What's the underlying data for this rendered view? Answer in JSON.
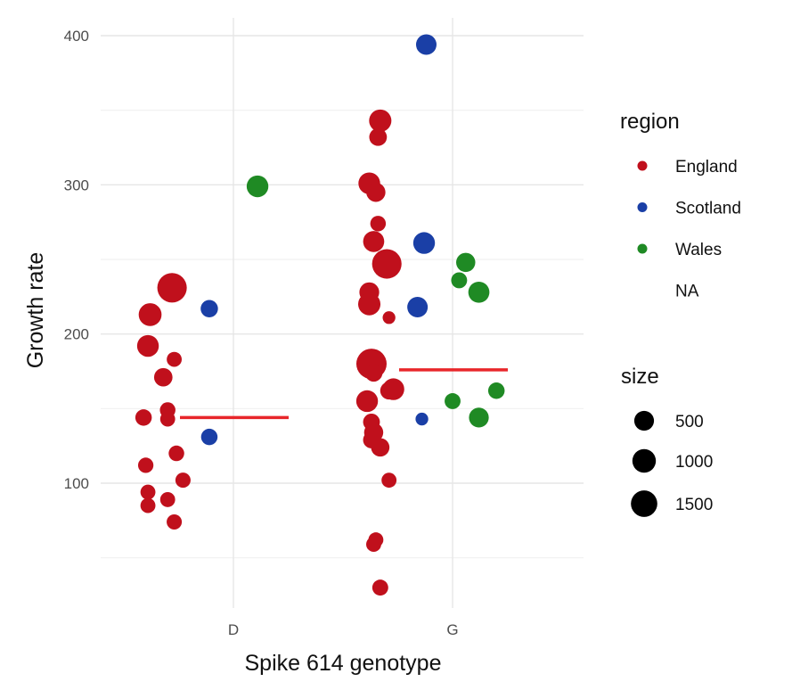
{
  "chart_data": {
    "type": "scatter",
    "xlabel": "Spike 614 genotype",
    "ylabel": "Growth rate",
    "categories": [
      "D",
      "G"
    ],
    "ylim": [
      20,
      410
    ],
    "yticks": [
      100,
      200,
      300,
      400
    ],
    "grid": true,
    "legend_placement": "right",
    "color_legend": {
      "title": "region",
      "entries": [
        {
          "label": "England",
          "color": "#c0101c"
        },
        {
          "label": "Scotland",
          "color": "#1a3fa6"
        },
        {
          "label": "Wales",
          "color": "#1f8a24"
        },
        {
          "label": "NA",
          "color": null
        }
      ]
    },
    "size_legend": {
      "title": "size",
      "entries": [
        {
          "label": "500",
          "value": 500
        },
        {
          "label": "1000",
          "value": 1000
        },
        {
          "label": "1500",
          "value": 1500
        }
      ]
    },
    "mean_line_color": "#e8262a",
    "means": [
      {
        "category": "D",
        "value": 144
      },
      {
        "category": "G",
        "value": 176
      }
    ],
    "points": [
      {
        "category": "D",
        "offset": -0.28,
        "y": 231,
        "region": "England",
        "size": 1500
      },
      {
        "category": "D",
        "offset": -0.38,
        "y": 213,
        "region": "England",
        "size": 800
      },
      {
        "category": "D",
        "offset": -0.39,
        "y": 192,
        "region": "England",
        "size": 700
      },
      {
        "category": "D",
        "offset": -0.27,
        "y": 183,
        "region": "England",
        "size": 250
      },
      {
        "category": "D",
        "offset": -0.32,
        "y": 171,
        "region": "England",
        "size": 450
      },
      {
        "category": "D",
        "offset": -0.3,
        "y": 149,
        "region": "England",
        "size": 280
      },
      {
        "category": "D",
        "offset": -0.41,
        "y": 144,
        "region": "England",
        "size": 330
      },
      {
        "category": "D",
        "offset": -0.3,
        "y": 143,
        "region": "England",
        "size": 250
      },
      {
        "category": "D",
        "offset": -0.26,
        "y": 120,
        "region": "England",
        "size": 280
      },
      {
        "category": "D",
        "offset": -0.4,
        "y": 112,
        "region": "England",
        "size": 270
      },
      {
        "category": "D",
        "offset": -0.23,
        "y": 102,
        "region": "England",
        "size": 260
      },
      {
        "category": "D",
        "offset": -0.39,
        "y": 94,
        "region": "England",
        "size": 250
      },
      {
        "category": "D",
        "offset": -0.3,
        "y": 89,
        "region": "England",
        "size": 250
      },
      {
        "category": "D",
        "offset": -0.39,
        "y": 85,
        "region": "England",
        "size": 250
      },
      {
        "category": "D",
        "offset": -0.27,
        "y": 74,
        "region": "England",
        "size": 260
      },
      {
        "category": "D",
        "offset": -0.11,
        "y": 217,
        "region": "Scotland",
        "size": 380
      },
      {
        "category": "D",
        "offset": -0.11,
        "y": 131,
        "region": "Scotland",
        "size": 330
      },
      {
        "category": "D",
        "offset": 0.11,
        "y": 299,
        "region": "Wales",
        "size": 700
      },
      {
        "category": "G",
        "offset": -0.33,
        "y": 343,
        "region": "England",
        "size": 750
      },
      {
        "category": "G",
        "offset": -0.34,
        "y": 332,
        "region": "England",
        "size": 400
      },
      {
        "category": "G",
        "offset": -0.38,
        "y": 301,
        "region": "England",
        "size": 700
      },
      {
        "category": "G",
        "offset": -0.35,
        "y": 295,
        "region": "England",
        "size": 500
      },
      {
        "category": "G",
        "offset": -0.34,
        "y": 274,
        "region": "England",
        "size": 280
      },
      {
        "category": "G",
        "offset": -0.36,
        "y": 262,
        "region": "England",
        "size": 650
      },
      {
        "category": "G",
        "offset": -0.3,
        "y": 247,
        "region": "England",
        "size": 1500
      },
      {
        "category": "G",
        "offset": -0.38,
        "y": 228,
        "region": "England",
        "size": 550
      },
      {
        "category": "G",
        "offset": -0.38,
        "y": 220,
        "region": "England",
        "size": 750
      },
      {
        "category": "G",
        "offset": -0.29,
        "y": 211,
        "region": "England",
        "size": 150
      },
      {
        "category": "G",
        "offset": -0.37,
        "y": 180,
        "region": "England",
        "size": 1600
      },
      {
        "category": "G",
        "offset": -0.36,
        "y": 174,
        "region": "England",
        "size": 400
      },
      {
        "category": "G",
        "offset": -0.27,
        "y": 163,
        "region": "England",
        "size": 700
      },
      {
        "category": "G",
        "offset": -0.29,
        "y": 162,
        "region": "England",
        "size": 400
      },
      {
        "category": "G",
        "offset": -0.39,
        "y": 155,
        "region": "England",
        "size": 700
      },
      {
        "category": "G",
        "offset": -0.37,
        "y": 141,
        "region": "England",
        "size": 350
      },
      {
        "category": "G",
        "offset": -0.36,
        "y": 134,
        "region": "England",
        "size": 500
      },
      {
        "category": "G",
        "offset": -0.37,
        "y": 129,
        "region": "England",
        "size": 350
      },
      {
        "category": "G",
        "offset": -0.33,
        "y": 124,
        "region": "England",
        "size": 450
      },
      {
        "category": "G",
        "offset": -0.29,
        "y": 102,
        "region": "England",
        "size": 250
      },
      {
        "category": "G",
        "offset": -0.35,
        "y": 62,
        "region": "England",
        "size": 250
      },
      {
        "category": "G",
        "offset": -0.36,
        "y": 59,
        "region": "England",
        "size": 250
      },
      {
        "category": "G",
        "offset": -0.33,
        "y": 30,
        "region": "England",
        "size": 300
      },
      {
        "category": "G",
        "offset": -0.12,
        "y": 394,
        "region": "Scotland",
        "size": 600
      },
      {
        "category": "G",
        "offset": -0.13,
        "y": 261,
        "region": "Scotland",
        "size": 700
      },
      {
        "category": "G",
        "offset": -0.16,
        "y": 218,
        "region": "Scotland",
        "size": 600
      },
      {
        "category": "G",
        "offset": -0.14,
        "y": 143,
        "region": "Scotland",
        "size": 150
      },
      {
        "category": "G",
        "offset": 0.06,
        "y": 248,
        "region": "Wales",
        "size": 500
      },
      {
        "category": "G",
        "offset": 0.03,
        "y": 236,
        "region": "Wales",
        "size": 300
      },
      {
        "category": "G",
        "offset": 0.12,
        "y": 228,
        "region": "Wales",
        "size": 650
      },
      {
        "category": "G",
        "offset": 0.0,
        "y": 155,
        "region": "Wales",
        "size": 300
      },
      {
        "category": "G",
        "offset": 0.2,
        "y": 162,
        "region": "Wales",
        "size": 330
      },
      {
        "category": "G",
        "offset": 0.12,
        "y": 144,
        "region": "Wales",
        "size": 550
      }
    ]
  }
}
